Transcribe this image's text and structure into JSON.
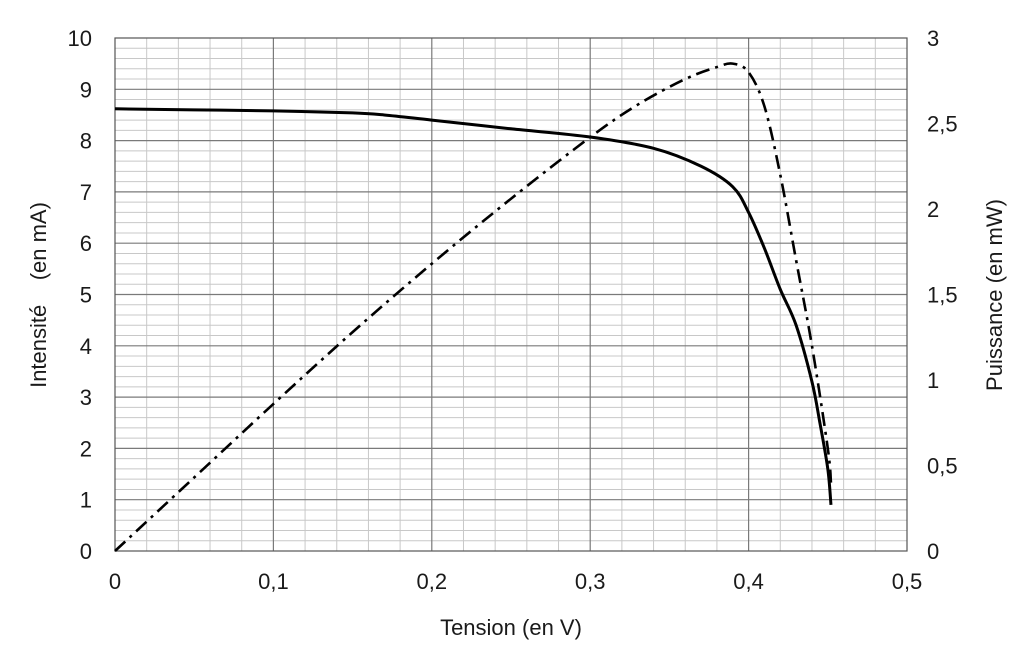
{
  "chart_data": {
    "type": "line",
    "title": "",
    "xlabel": "Tension  (en V)",
    "ylabel_left": "Intensité    (en mA)",
    "ylabel_right": "Puissance (en mW)",
    "xlim": [
      0,
      0.5
    ],
    "ylim_left": [
      0,
      10
    ],
    "ylim_right": [
      0,
      3
    ],
    "x_ticks": [
      "0",
      "0,1",
      "0,2",
      "0,3",
      "0,4",
      "0,5"
    ],
    "y_left_ticks": [
      "0",
      "1",
      "2",
      "3",
      "4",
      "5",
      "6",
      "7",
      "8",
      "9",
      "10"
    ],
    "y_right_ticks": [
      "0",
      "0,5",
      "1",
      "1,5",
      "2",
      "2,5",
      "3"
    ],
    "grid": true,
    "series": [
      {
        "axis": "left",
        "style": "solid",
        "color": "#000000",
        "x": [
          0,
          0.05,
          0.1,
          0.15,
          0.17,
          0.2,
          0.25,
          0.3,
          0.34,
          0.37,
          0.39,
          0.4,
          0.41,
          0.42,
          0.43,
          0.44,
          0.445,
          0.45,
          0.452
        ],
        "y": [
          8.62,
          8.6,
          8.58,
          8.54,
          8.5,
          8.4,
          8.23,
          8.07,
          7.85,
          7.5,
          7.1,
          6.6,
          5.9,
          5.1,
          4.4,
          3.3,
          2.5,
          1.6,
          0.9
        ]
      },
      {
        "axis": "right",
        "style": "dash-dot",
        "color": "#000000",
        "x": [
          0,
          0.05,
          0.1,
          0.15,
          0.2,
          0.25,
          0.3,
          0.33,
          0.36,
          0.38,
          0.39,
          0.4,
          0.41,
          0.42,
          0.43,
          0.44,
          0.45,
          0.452
        ],
        "y": [
          0,
          0.43,
          0.86,
          1.28,
          1.68,
          2.06,
          2.42,
          2.61,
          2.76,
          2.83,
          2.85,
          2.8,
          2.6,
          2.2,
          1.7,
          1.2,
          0.6,
          0.4
        ]
      }
    ]
  }
}
